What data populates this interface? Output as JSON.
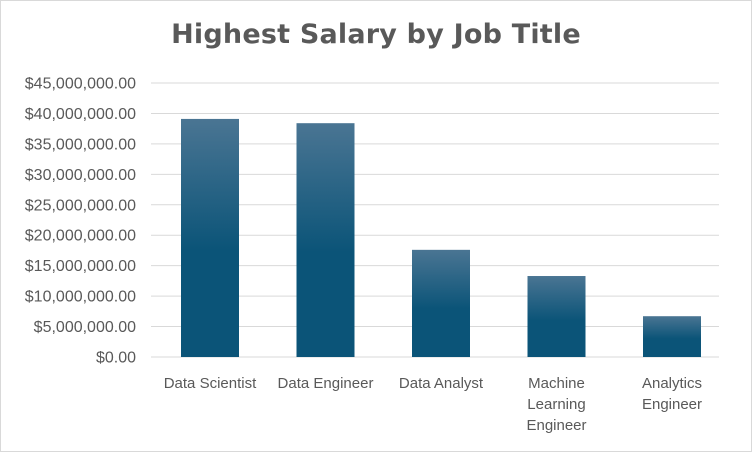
{
  "chart_data": {
    "type": "bar",
    "title": "Highest Salary by Job Title",
    "categories": [
      [
        "Data Scientist"
      ],
      [
        "Data Engineer"
      ],
      [
        "Data Analyst"
      ],
      [
        "Machine",
        "Learning",
        "Engineer"
      ],
      [
        "Analytics",
        "Engineer"
      ]
    ],
    "values": [
      39100000,
      38400000,
      17600000,
      13300000,
      6700000
    ],
    "xlabel": "",
    "ylabel": "",
    "ylim": [
      0,
      45000000
    ],
    "ytick_labels": [
      "$0.00",
      "$5,000,000.00",
      "$10,000,000.00",
      "$15,000,000.00",
      "$20,000,000.00",
      "$25,000,000.00",
      "$30,000,000.00",
      "$35,000,000.00",
      "$40,000,000.00",
      "$45,000,000.00"
    ],
    "grid": true,
    "legend": "none",
    "colors": {
      "bar_top": "#4a7593",
      "bar_bottom": "#0b5478",
      "grid": "#d9d9d9",
      "text": "#595959"
    }
  }
}
